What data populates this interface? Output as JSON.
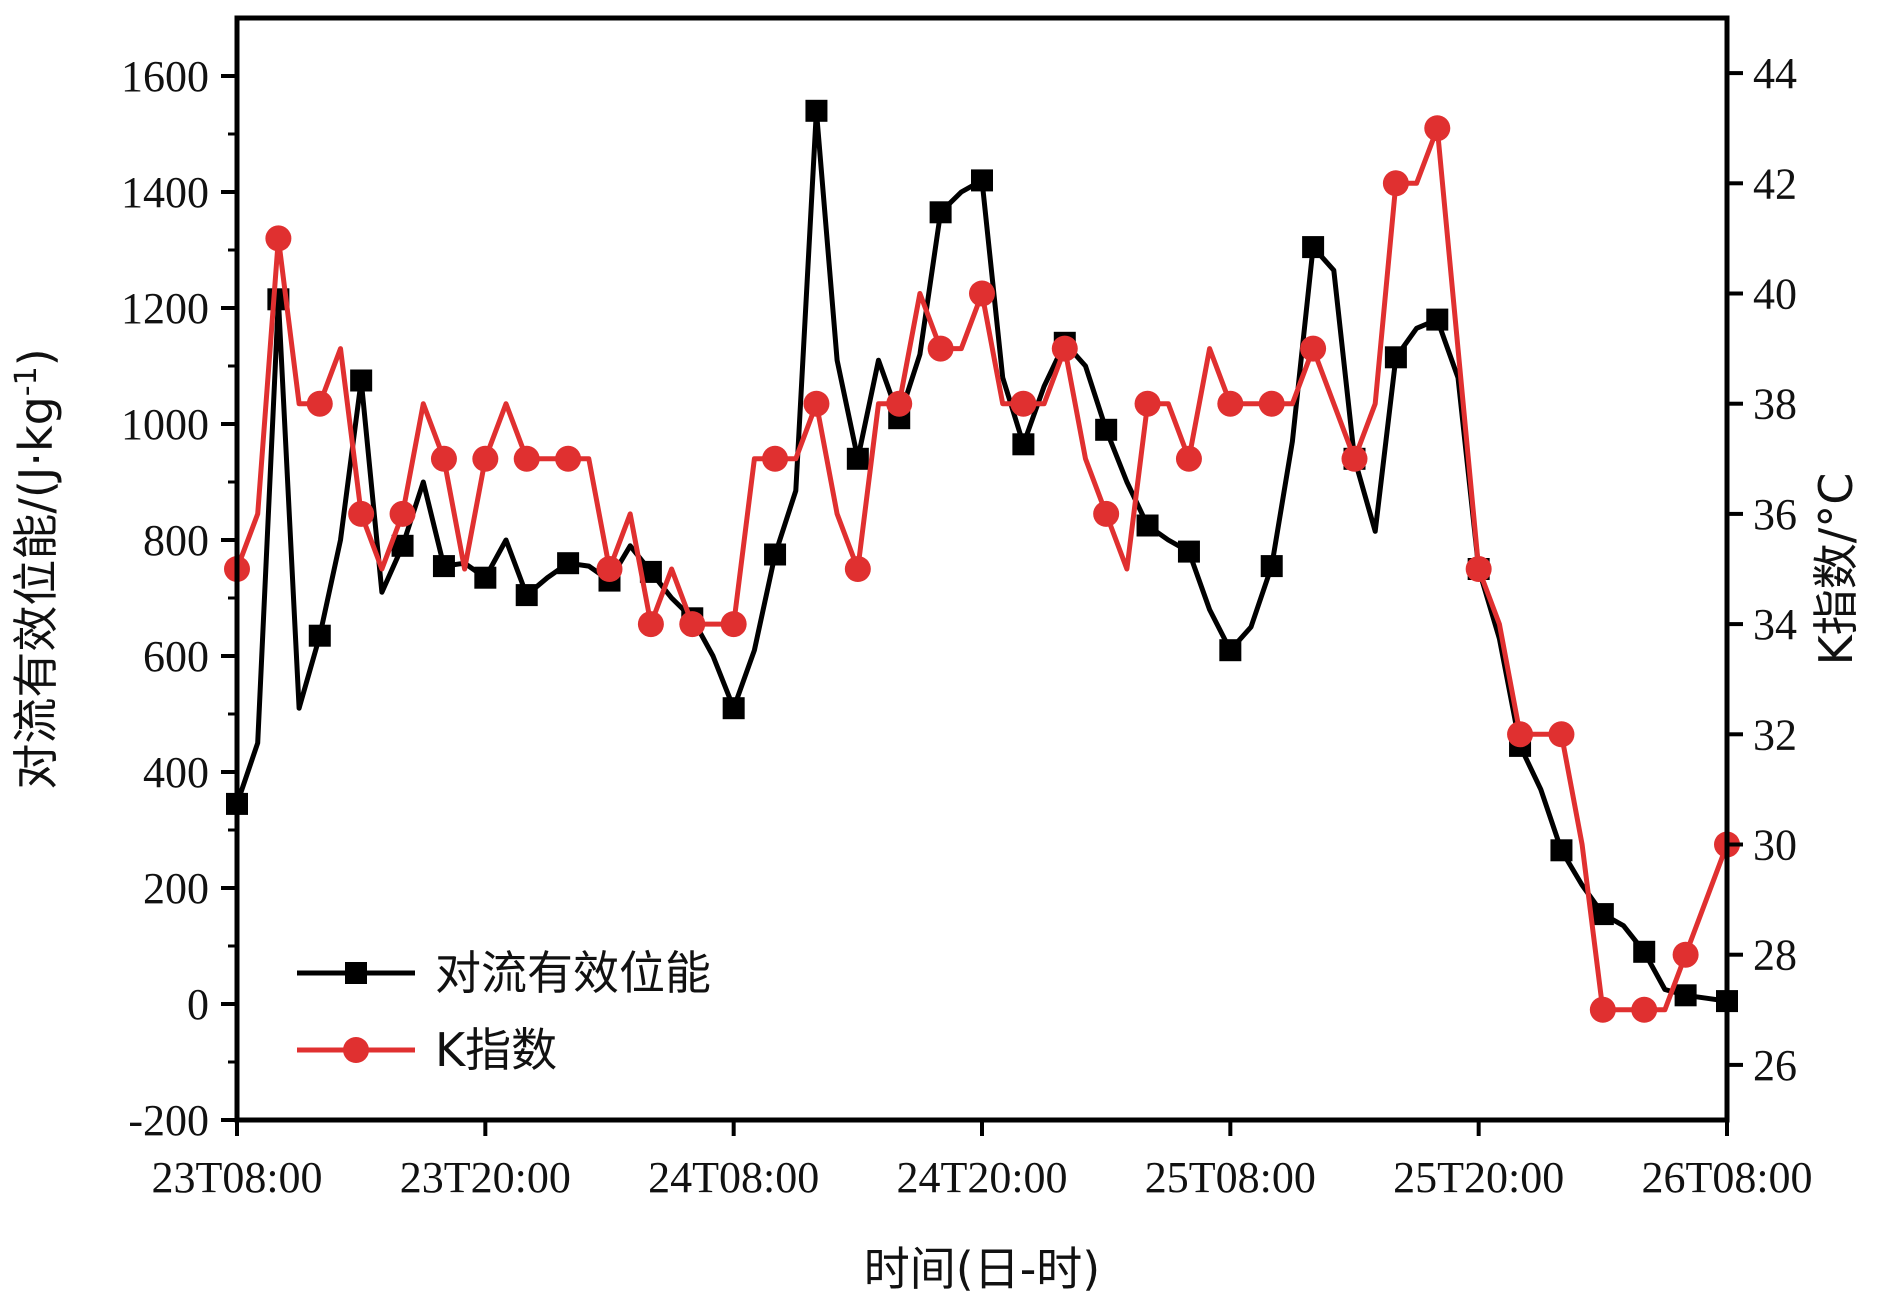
{
  "chart_data": {
    "type": "line",
    "xlabel": "时间(日-时)",
    "ylabel_left": "对流有效位能/(J·kg",
    "ylabel_left_sup": "-1",
    "ylabel_left_end": ")",
    "ylabel_right": "K指数/°C",
    "x_range_hours": [
      0,
      72
    ],
    "x_ticks": [
      {
        "hour": 0,
        "label": "23T08:00"
      },
      {
        "hour": 12,
        "label": "23T20:00"
      },
      {
        "hour": 24,
        "label": "24T08:00"
      },
      {
        "hour": 36,
        "label": "24T20:00"
      },
      {
        "hour": 48,
        "label": "25T08:00"
      },
      {
        "hour": 60,
        "label": "25T20:00"
      },
      {
        "hour": 72,
        "label": "26T08:00"
      }
    ],
    "y_left": {
      "min": -200,
      "max": 1700,
      "ticks": [
        -200,
        0,
        200,
        400,
        600,
        800,
        1000,
        1200,
        1400,
        1600
      ],
      "tick_labels": [
        "-200",
        "0",
        "200",
        "400",
        "600",
        "800",
        "1000",
        "1200",
        "1400",
        "1600"
      ]
    },
    "y_right": {
      "min": 25,
      "max": 45,
      "ticks": [
        26,
        28,
        30,
        32,
        34,
        36,
        38,
        40,
        42,
        44
      ],
      "tick_labels": [
        "26",
        "28",
        "30",
        "32",
        "34",
        "36",
        "38",
        "40",
        "42",
        "44"
      ]
    },
    "legend": {
      "placement": "bottom-left"
    },
    "grid": false,
    "series": [
      {
        "name": "对流有效位能",
        "axis": "left",
        "color": "#000000",
        "marker": "square",
        "x": [
          0,
          1,
          2,
          3,
          4,
          5,
          6,
          7,
          8,
          9,
          10,
          11,
          12,
          13,
          14,
          15,
          16,
          17,
          18,
          19,
          20,
          21,
          22,
          23,
          24,
          25,
          26,
          27,
          28,
          29,
          30,
          31,
          32,
          33,
          34,
          35,
          36,
          37,
          38,
          39,
          40,
          41,
          42,
          43,
          44,
          45,
          46,
          47,
          48,
          49,
          50,
          51,
          52,
          53,
          54,
          55,
          56,
          57,
          58,
          59,
          60,
          61,
          62,
          63,
          64,
          65,
          66,
          67,
          68,
          69,
          70,
          71,
          72
        ],
        "values": [
          345,
          450,
          1215,
          510,
          635,
          800,
          1075,
          710,
          790,
          900,
          755,
          760,
          735,
          800,
          705,
          735,
          760,
          755,
          730,
          790,
          745,
          700,
          665,
          600,
          510,
          610,
          775,
          885,
          1540,
          1110,
          940,
          1110,
          1010,
          1120,
          1365,
          1400,
          1420,
          1080,
          965,
          1065,
          1140,
          1100,
          990,
          900,
          825,
          800,
          780,
          680,
          610,
          650,
          755,
          970,
          1305,
          1265,
          940,
          815,
          1115,
          1165,
          1180,
          1080,
          750,
          630,
          445,
          370,
          265,
          205,
          155,
          135,
          90,
          25,
          15,
          10,
          5
        ],
        "markers_at": [
          0,
          2,
          4,
          6,
          8,
          10,
          12,
          14,
          16,
          18,
          20,
          22,
          24,
          26,
          28,
          30,
          32,
          34,
          36,
          38,
          40,
          42,
          44,
          46,
          48,
          50,
          52,
          54,
          56,
          58,
          60,
          62,
          64,
          66,
          68,
          70,
          72
        ]
      },
      {
        "name": "K指数",
        "axis": "right",
        "color": "#e03030",
        "marker": "circle",
        "x": [
          0,
          1,
          2,
          3,
          4,
          5,
          6,
          7,
          8,
          9,
          10,
          11,
          12,
          13,
          14,
          15,
          16,
          17,
          18,
          19,
          20,
          21,
          22,
          23,
          24,
          25,
          26,
          27,
          28,
          29,
          30,
          31,
          32,
          33,
          34,
          35,
          36,
          37,
          38,
          39,
          40,
          41,
          42,
          43,
          44,
          45,
          46,
          47,
          48,
          49,
          50,
          51,
          52,
          53,
          54,
          55,
          56,
          57,
          58,
          59,
          60,
          61,
          62,
          63,
          64,
          65,
          66,
          67,
          68,
          69,
          70,
          71,
          72
        ],
        "values": [
          35,
          36,
          41,
          38,
          38,
          39,
          36,
          35,
          36,
          38,
          37,
          35,
          37,
          38,
          37,
          37,
          37,
          37,
          35,
          36,
          34,
          35,
          34,
          34,
          34,
          37,
          37,
          37,
          38,
          36,
          35,
          38,
          38,
          40,
          39,
          39,
          40,
          38,
          38,
          38,
          39,
          37,
          36,
          35,
          38,
          38,
          37,
          39,
          38,
          38,
          38,
          38,
          39,
          38,
          37,
          38,
          42,
          42,
          43,
          39,
          35,
          34,
          32,
          32,
          32,
          30,
          27,
          27,
          27,
          27,
          28,
          29,
          30
        ],
        "markers_at": [
          0,
          2,
          4,
          6,
          8,
          10,
          12,
          14,
          16,
          18,
          20,
          22,
          24,
          26,
          28,
          30,
          32,
          34,
          36,
          38,
          40,
          42,
          44,
          46,
          48,
          50,
          52,
          54,
          56,
          58,
          60,
          62,
          64,
          66,
          68,
          70,
          72
        ]
      }
    ]
  }
}
